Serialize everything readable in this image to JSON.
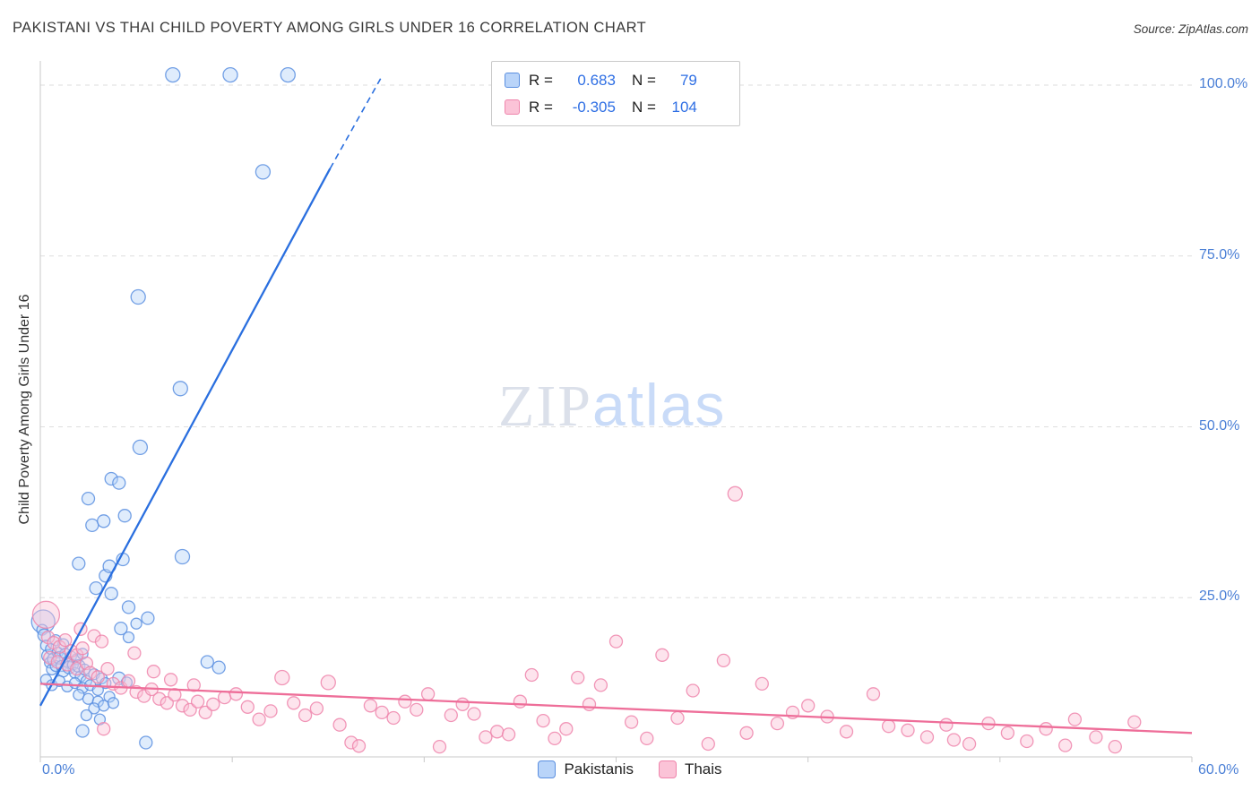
{
  "header": {
    "title": "PAKISTANI VS THAI CHILD POVERTY AMONG GIRLS UNDER 16 CORRELATION CHART",
    "source": "Source: ZipAtlas.com"
  },
  "watermark": {
    "part1": "ZIP",
    "part2": "atlas"
  },
  "colors": {
    "tick_label": "#4a7fd6",
    "legend_value": "#2f6fe4",
    "grid": "#dedede",
    "axis": "#c9c9c9",
    "pakistanis": {
      "fill": "#b9d4f9",
      "stroke": "#5b8fe0",
      "line": "#2a6fdf"
    },
    "thais": {
      "fill": "#fbc3d7",
      "stroke": "#ef85ac",
      "line": "#ee6e99"
    }
  },
  "legend_box": {
    "rows": [
      {
        "key": "pakistanis",
        "r_label": "R =",
        "r_value": "0.683",
        "n_label": "N =",
        "n_value": "79"
      },
      {
        "key": "thais",
        "r_label": "R =",
        "r_value": "-0.305",
        "n_label": "N =",
        "n_value": "104"
      }
    ]
  },
  "bottom_legend": {
    "items": [
      {
        "label": "Pakistanis"
      },
      {
        "label": "Thais"
      }
    ]
  },
  "chart_data": {
    "type": "scatter",
    "title": "PAKISTANI VS THAI CHILD POVERTY AMONG GIRLS UNDER 16 CORRELATION CHART",
    "xlabel": "",
    "ylabel": "Child Poverty Among Girls Under 16",
    "xlim": [
      0,
      60
    ],
    "ylim": [
      0,
      105
    ],
    "grid": true,
    "x_ticks": [
      {
        "value": 0,
        "label": "0.0%"
      },
      {
        "value": 60,
        "label": "60.0%"
      }
    ],
    "y_ticks": [
      {
        "value": 25,
        "label": "25.0%"
      },
      {
        "value": 50,
        "label": "50.0%"
      },
      {
        "value": 75,
        "label": "75.0%"
      },
      {
        "value": 100,
        "label": "100.0%"
      }
    ],
    "series": [
      {
        "key": "pakistanis",
        "name": "Pakistanis",
        "R": 0.683,
        "N": 79,
        "fill": "#b9d4f9",
        "color": "#5b8fe0",
        "line": "#2a6fdf",
        "trend": {
          "solid": [
            [
              0,
              9.2
            ],
            [
              15.1,
              87.8
            ]
          ],
          "dashed": [
            [
              15.1,
              87.8
            ],
            [
              17.8,
              101.3
            ]
          ]
        },
        "points": [
          [
            0.15,
            21.5,
            13
          ],
          [
            0.1,
            20.3,
            6
          ],
          [
            0.2,
            19.5,
            7
          ],
          [
            0.3,
            18.0,
            6
          ],
          [
            0.4,
            16.5,
            7
          ],
          [
            0.5,
            15.5,
            6
          ],
          [
            0.55,
            17.5,
            6
          ],
          [
            0.6,
            14.5,
            6
          ],
          [
            0.7,
            16.0,
            7
          ],
          [
            0.8,
            18.8,
            6
          ],
          [
            0.8,
            15.0,
            6
          ],
          [
            0.9,
            17.0,
            6
          ],
          [
            1.0,
            16.2,
            7
          ],
          [
            1.1,
            15.0,
            6
          ],
          [
            1.2,
            18.2,
            6
          ],
          [
            1.2,
            14.2,
            6
          ],
          [
            1.3,
            16.8,
            6
          ],
          [
            1.4,
            15.6,
            6
          ],
          [
            1.5,
            14.8,
            7
          ],
          [
            1.6,
            16.4,
            6
          ],
          [
            1.7,
            15.2,
            6
          ],
          [
            1.8,
            14.0,
            6
          ],
          [
            1.9,
            16.0,
            6
          ],
          [
            2.0,
            15.0,
            7
          ],
          [
            2.1,
            13.5,
            6
          ],
          [
            2.2,
            16.8,
            6
          ],
          [
            2.3,
            14.5,
            6
          ],
          [
            2.4,
            12.8,
            6
          ],
          [
            0.3,
            13.0,
            6
          ],
          [
            0.6,
            12.2,
            6
          ],
          [
            1.0,
            12.8,
            6
          ],
          [
            1.4,
            12.0,
            6
          ],
          [
            1.8,
            12.5,
            6
          ],
          [
            2.2,
            11.8,
            6
          ],
          [
            2.6,
            12.2,
            6
          ],
          [
            3.0,
            11.5,
            6
          ],
          [
            2.8,
            13.8,
            6
          ],
          [
            3.2,
            13.2,
            6
          ],
          [
            3.4,
            12.5,
            6
          ],
          [
            2.0,
            10.8,
            6
          ],
          [
            2.5,
            10.2,
            6
          ],
          [
            3.0,
            9.8,
            6
          ],
          [
            3.6,
            10.5,
            6
          ],
          [
            2.8,
            8.8,
            6
          ],
          [
            3.3,
            9.2,
            6
          ],
          [
            3.8,
            9.6,
            6
          ],
          [
            2.4,
            7.8,
            6
          ],
          [
            3.1,
            7.2,
            6
          ],
          [
            2.2,
            5.5,
            7
          ],
          [
            5.5,
            3.8,
            7
          ],
          [
            4.1,
            13.2,
            7
          ],
          [
            4.5,
            12.6,
            6
          ],
          [
            4.2,
            20.5,
            7
          ],
          [
            4.6,
            19.2,
            6
          ],
          [
            5.0,
            21.2,
            6
          ],
          [
            5.6,
            22.0,
            7
          ],
          [
            4.6,
            23.6,
            7
          ],
          [
            3.7,
            25.6,
            7
          ],
          [
            2.9,
            26.4,
            7
          ],
          [
            3.4,
            28.2,
            7
          ],
          [
            3.6,
            29.6,
            7
          ],
          [
            2.0,
            30.0,
            7
          ],
          [
            4.3,
            30.6,
            7
          ],
          [
            7.4,
            31.0,
            8
          ],
          [
            2.5,
            39.5,
            7
          ],
          [
            2.7,
            35.6,
            7
          ],
          [
            3.3,
            36.2,
            7
          ],
          [
            4.4,
            37.0,
            7
          ],
          [
            3.7,
            42.4,
            7
          ],
          [
            4.1,
            41.8,
            7
          ],
          [
            5.2,
            47.0,
            8
          ],
          [
            7.3,
            55.6,
            8
          ],
          [
            5.1,
            69.0,
            8
          ],
          [
            11.6,
            87.3,
            8
          ],
          [
            6.9,
            101.5,
            8
          ],
          [
            9.9,
            101.5,
            8
          ],
          [
            12.9,
            101.5,
            8
          ],
          [
            8.7,
            15.6,
            7
          ],
          [
            9.3,
            14.8,
            7
          ]
        ]
      },
      {
        "key": "thais",
        "name": "Thais",
        "R": -0.305,
        "N": 104,
        "fill": "#fbc3d7",
        "color": "#ef85ac",
        "line": "#ee6e99",
        "trend": {
          "solid": [
            [
              0,
              12.4
            ],
            [
              60,
              5.2
            ]
          ]
        },
        "points": [
          [
            0.3,
            22.5,
            15
          ],
          [
            0.4,
            19.2,
            7
          ],
          [
            0.7,
            18.4,
            7
          ],
          [
            1.0,
            17.8,
            7
          ],
          [
            1.3,
            18.8,
            7
          ],
          [
            1.6,
            17.2,
            7
          ],
          [
            1.9,
            16.6,
            7
          ],
          [
            2.2,
            17.6,
            7
          ],
          [
            0.5,
            16.2,
            7
          ],
          [
            0.9,
            15.6,
            7
          ],
          [
            1.4,
            15.2,
            7
          ],
          [
            1.9,
            14.6,
            7
          ],
          [
            2.4,
            15.4,
            7
          ],
          [
            2.8,
            19.4,
            7
          ],
          [
            3.2,
            18.6,
            7
          ],
          [
            2.6,
            14.0,
            7
          ],
          [
            3.0,
            13.4,
            7
          ],
          [
            3.5,
            14.6,
            7
          ],
          [
            2.1,
            20.4,
            7
          ],
          [
            3.8,
            12.4,
            7
          ],
          [
            4.2,
            11.8,
            7
          ],
          [
            4.6,
            12.8,
            7
          ],
          [
            5.0,
            11.2,
            7
          ],
          [
            5.4,
            10.6,
            7
          ],
          [
            5.8,
            11.6,
            7
          ],
          [
            6.2,
            10.2,
            7
          ],
          [
            6.6,
            9.6,
            7
          ],
          [
            7.0,
            10.8,
            7
          ],
          [
            7.4,
            9.2,
            7
          ],
          [
            7.8,
            8.6,
            7
          ],
          [
            8.2,
            9.8,
            7
          ],
          [
            8.6,
            8.2,
            7
          ],
          [
            9.0,
            9.4,
            7
          ],
          [
            9.6,
            10.4,
            7
          ],
          [
            10.2,
            10.9,
            7
          ],
          [
            10.8,
            9.0,
            7
          ],
          [
            11.4,
            7.2,
            7
          ],
          [
            12.0,
            8.4,
            7
          ],
          [
            12.6,
            13.3,
            8
          ],
          [
            13.2,
            9.6,
            7
          ],
          [
            13.8,
            7.8,
            7
          ],
          [
            14.4,
            8.8,
            7
          ],
          [
            15.0,
            12.6,
            8
          ],
          [
            15.6,
            6.4,
            7
          ],
          [
            16.2,
            3.8,
            7
          ],
          [
            16.6,
            3.3,
            7
          ],
          [
            17.2,
            9.2,
            7
          ],
          [
            17.8,
            8.2,
            7
          ],
          [
            18.4,
            7.4,
            7
          ],
          [
            19.0,
            9.8,
            7
          ],
          [
            19.6,
            8.6,
            7
          ],
          [
            20.2,
            10.9,
            7
          ],
          [
            20.8,
            3.2,
            7
          ],
          [
            21.4,
            7.8,
            7
          ],
          [
            22.0,
            9.4,
            7
          ],
          [
            22.6,
            8.0,
            7
          ],
          [
            23.2,
            4.6,
            7
          ],
          [
            23.8,
            5.4,
            7
          ],
          [
            24.4,
            5.0,
            7
          ],
          [
            25.0,
            9.8,
            7
          ],
          [
            25.6,
            13.7,
            7
          ],
          [
            26.2,
            7.0,
            7
          ],
          [
            26.8,
            4.4,
            7
          ],
          [
            27.4,
            5.8,
            7
          ],
          [
            28.0,
            13.3,
            7
          ],
          [
            28.6,
            9.4,
            7
          ],
          [
            29.2,
            12.2,
            7
          ],
          [
            30.0,
            18.6,
            7
          ],
          [
            30.8,
            6.8,
            7
          ],
          [
            31.6,
            4.4,
            7
          ],
          [
            32.4,
            16.6,
            7
          ],
          [
            33.2,
            7.4,
            7
          ],
          [
            34.0,
            11.4,
            7
          ],
          [
            34.8,
            3.6,
            7
          ],
          [
            35.6,
            15.8,
            7
          ],
          [
            36.2,
            40.2,
            8
          ],
          [
            36.8,
            5.2,
            7
          ],
          [
            37.6,
            12.4,
            7
          ],
          [
            38.4,
            6.6,
            7
          ],
          [
            39.2,
            8.2,
            7
          ],
          [
            40.0,
            9.2,
            7
          ],
          [
            41.0,
            7.6,
            7
          ],
          [
            42.0,
            5.4,
            7
          ],
          [
            43.4,
            10.9,
            7
          ],
          [
            44.2,
            6.2,
            7
          ],
          [
            45.2,
            5.6,
            7
          ],
          [
            46.2,
            4.6,
            7
          ],
          [
            47.2,
            6.4,
            7
          ],
          [
            47.6,
            4.2,
            7
          ],
          [
            48.4,
            3.6,
            7
          ],
          [
            49.4,
            6.6,
            7
          ],
          [
            50.4,
            5.2,
            7
          ],
          [
            51.4,
            4.0,
            7
          ],
          [
            52.4,
            5.8,
            7
          ],
          [
            53.4,
            3.4,
            7
          ],
          [
            53.9,
            7.2,
            7
          ],
          [
            55.0,
            4.6,
            7
          ],
          [
            56.0,
            3.2,
            7
          ],
          [
            57.0,
            6.8,
            7
          ],
          [
            3.3,
            5.8,
            7
          ],
          [
            4.9,
            16.9,
            7
          ],
          [
            5.9,
            14.2,
            7
          ],
          [
            6.8,
            13.0,
            7
          ],
          [
            8.0,
            12.2,
            7
          ]
        ]
      }
    ]
  }
}
